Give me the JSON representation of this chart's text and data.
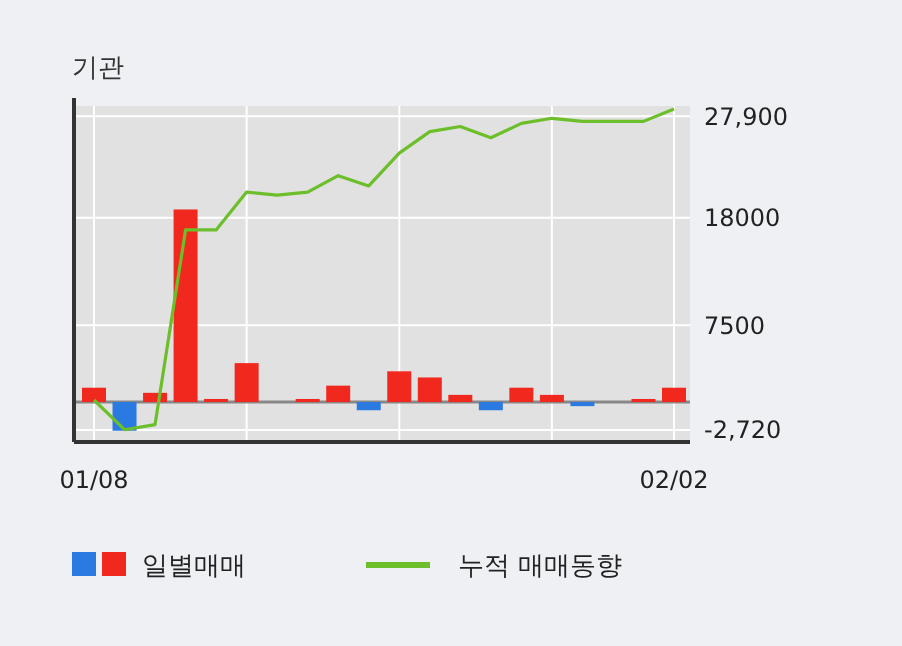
{
  "chart_data": {
    "type": "bar",
    "title": "기관",
    "categories": [
      "01/08",
      null,
      null,
      null,
      null,
      null,
      null,
      null,
      null,
      null,
      null,
      null,
      null,
      null,
      null,
      null,
      null,
      null,
      null,
      "02/02"
    ],
    "series": [
      {
        "name": "일별매매",
        "colors": [
          "#f0281e",
          "#2a7ae2",
          "#f0281e",
          "#f0281e",
          "#f0281e",
          "#f0281e",
          "#f0281e",
          "#f0281e",
          "#f0281e",
          "#2a7ae2",
          "#f0281e",
          "#f0281e",
          "#f0281e",
          "#2a7ae2",
          "#f0281e",
          "#f0281e",
          "#2a7ae2",
          "#f0281e",
          "#f0281e",
          "#f0281e"
        ],
        "values": [
          1400,
          -2800,
          900,
          18800,
          300,
          3800,
          0,
          300,
          1600,
          -800,
          3000,
          2400,
          700,
          -800,
          1400,
          700,
          -400,
          0,
          300,
          1400
        ]
      },
      {
        "name": "누적 매매동향",
        "type": "line",
        "color": "#6cbf2a",
        "values": [
          200,
          -2700,
          -2200,
          16800,
          16800,
          20500,
          20200,
          20500,
          22100,
          21100,
          24300,
          26400,
          26900,
          25800,
          27200,
          27700,
          27400,
          27400,
          27400,
          28600
        ]
      }
    ],
    "ylim": [
      -3900,
      28900
    ],
    "yticks": [
      {
        "value": -2720,
        "label": "-2,720"
      },
      7500,
      18000,
      {
        "value": 27900,
        "label": "27,900"
      }
    ],
    "grid": true,
    "legend": "bottom",
    "marker": "none",
    "line_style": "solid"
  }
}
